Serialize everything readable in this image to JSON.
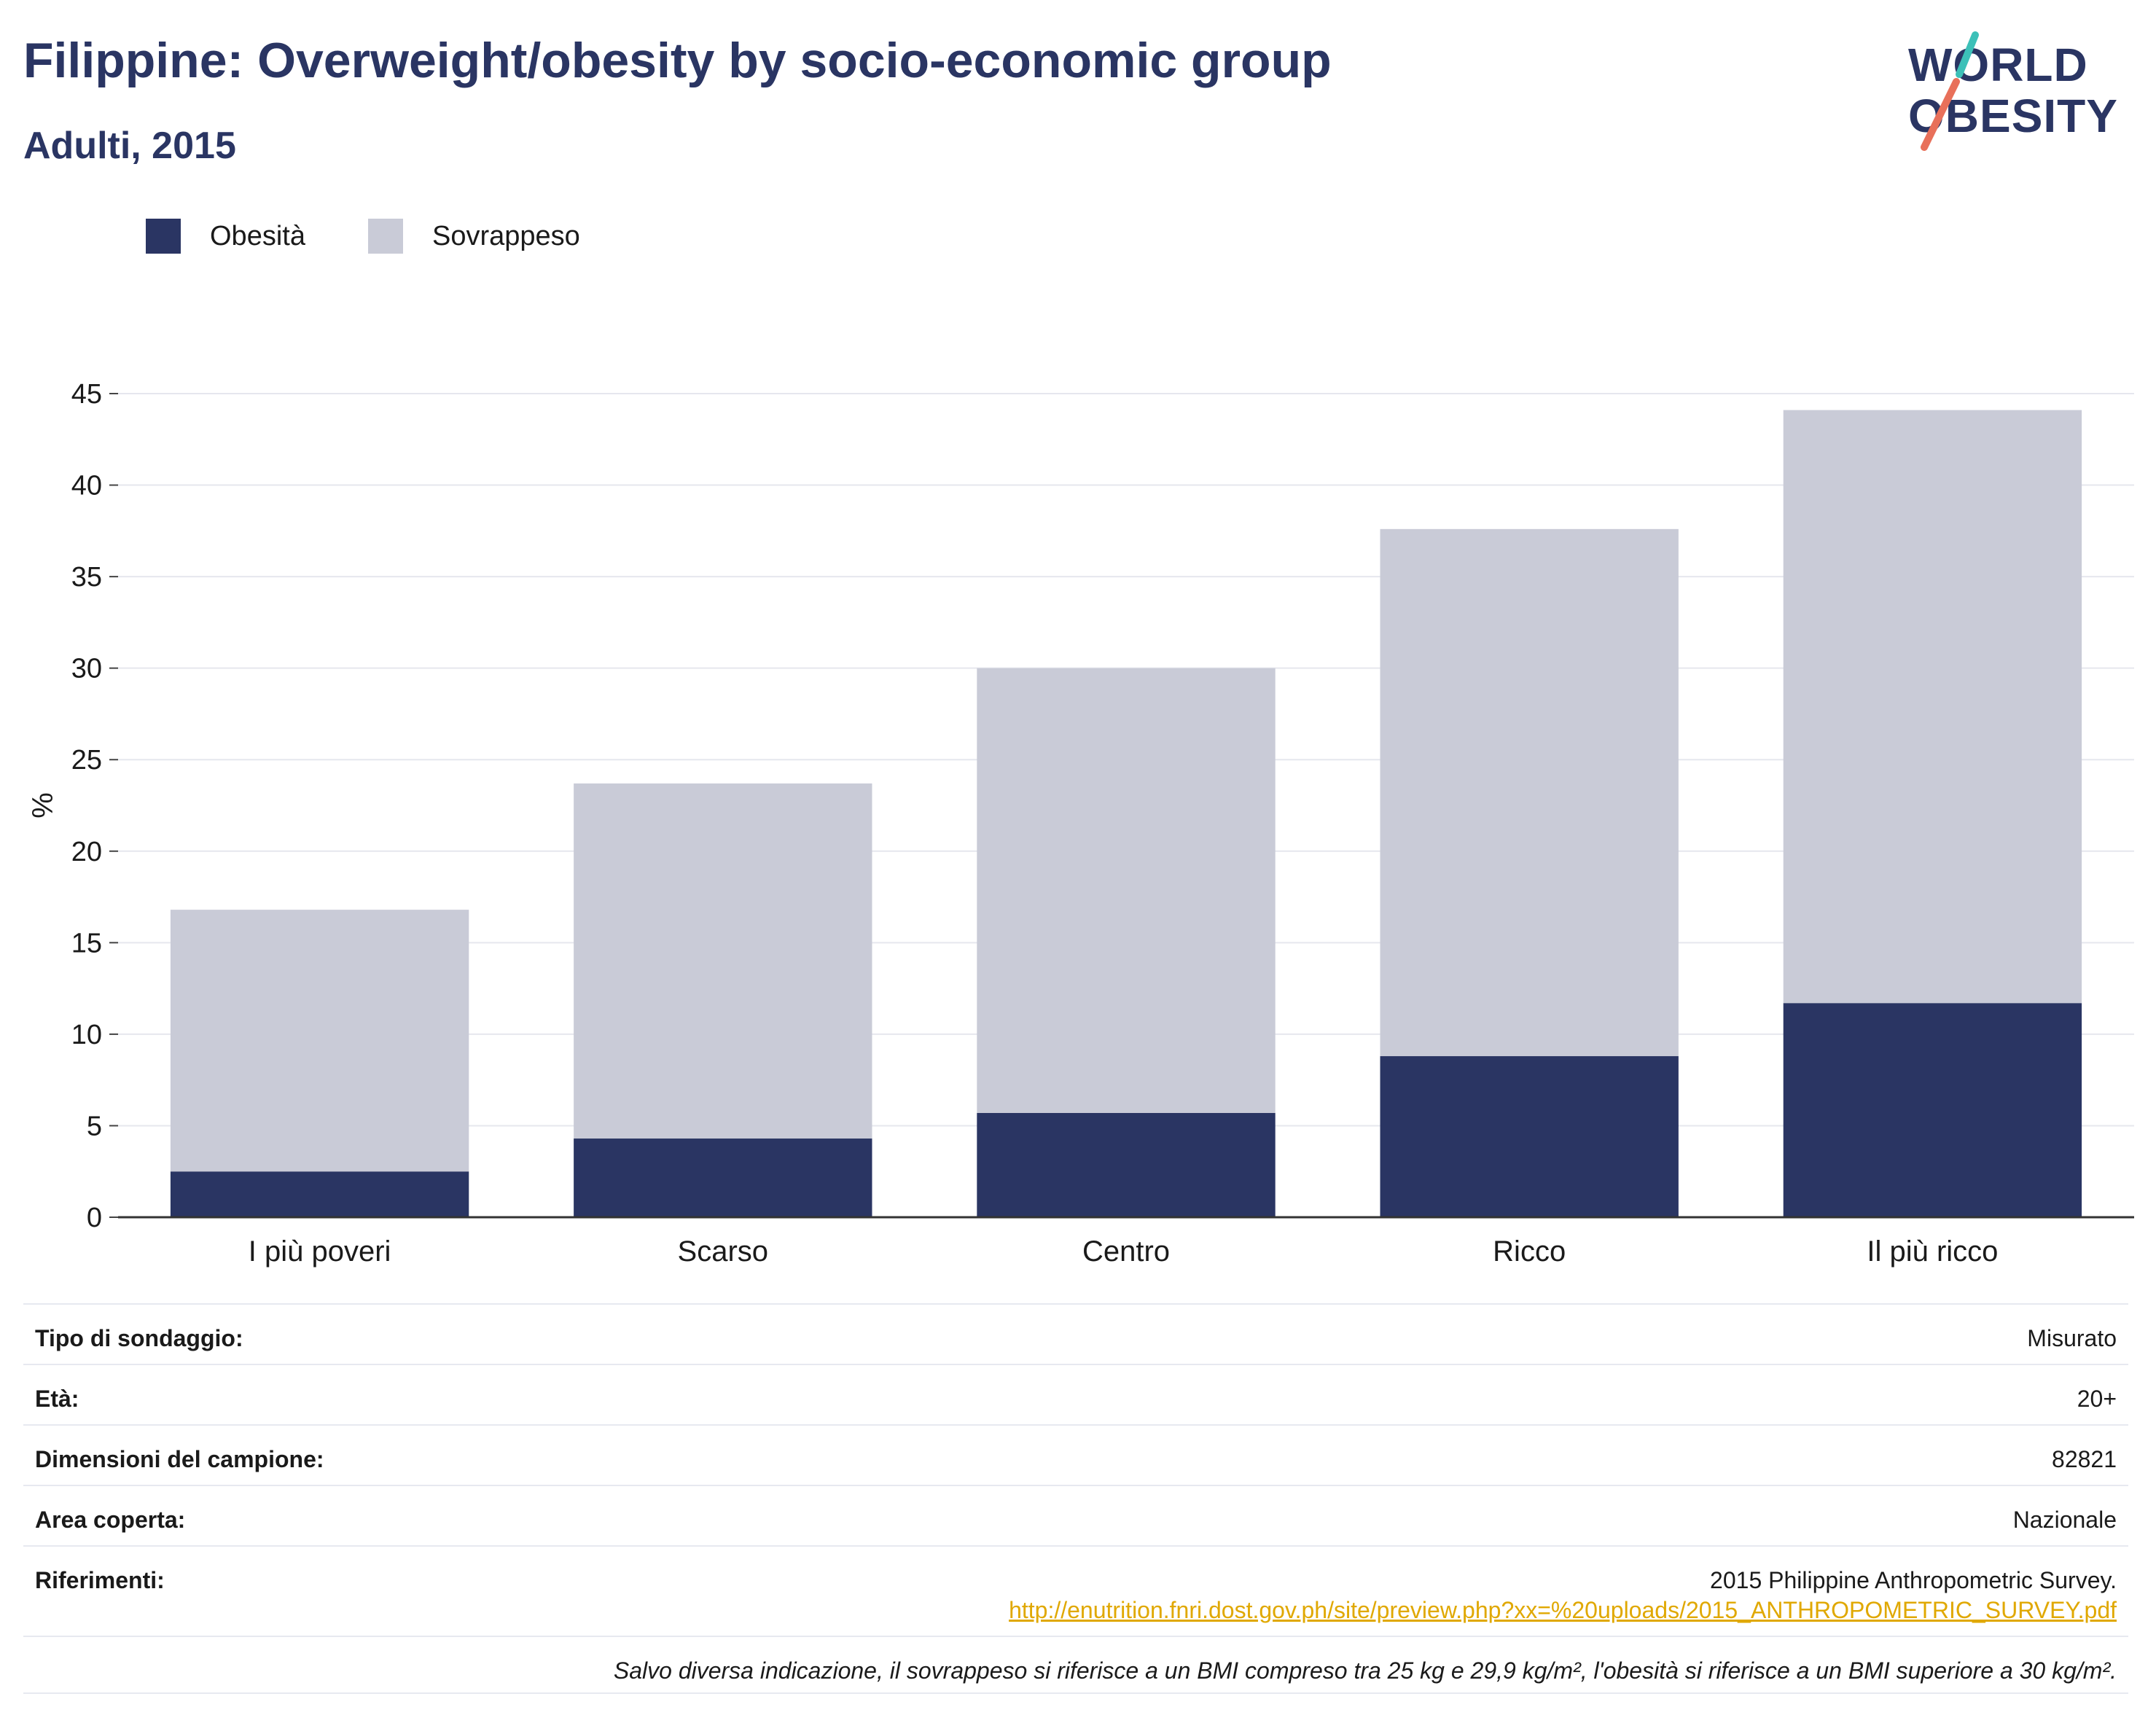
{
  "header": {
    "title": "Filippine: Overweight/obesity by socio-economic group",
    "subtitle": "Adulti, 2015"
  },
  "logo": {
    "line1": "WORLD",
    "line2": "OBESITY",
    "slash_top_color": "#3cc0b8",
    "slash_bottom_color": "#e8705a"
  },
  "colors": {
    "obesity": "#2a3563",
    "overweight": "#c9cbd7",
    "title": "#2a3563",
    "link": "#e0a800"
  },
  "chart_data": {
    "type": "bar",
    "stacked": true,
    "categories": [
      "I più poveri",
      "Scarso",
      "Centro",
      "Ricco",
      "Il più ricco"
    ],
    "series": [
      {
        "name": "Obesità",
        "color": "#2a3563",
        "values": [
          2.5,
          4.3,
          5.7,
          8.8,
          11.7
        ]
      },
      {
        "name": "Sovrappeso",
        "color": "#c9cbd7",
        "values": [
          14.3,
          19.4,
          24.3,
          28.8,
          32.4
        ]
      }
    ],
    "ylabel": "%",
    "ylim": [
      0,
      45
    ],
    "yticks": [
      0,
      5,
      10,
      15,
      20,
      25,
      30,
      35,
      40,
      45
    ],
    "grid": true,
    "legend_position": "top-left"
  },
  "meta": {
    "rows": [
      {
        "label": "Tipo di sondaggio:",
        "value": "Misurato"
      },
      {
        "label": "Età:",
        "value": "20+"
      },
      {
        "label": "Dimensioni del campione:",
        "value": "82821"
      },
      {
        "label": "Area coperta:",
        "value": "Nazionale"
      }
    ],
    "references": {
      "label": "Riferimenti:",
      "value": "2015 Philippine Anthropometric Survey.",
      "link": "http://enutrition.fnri.dost.gov.ph/site/preview.php?xx=%20uploads/2015_ANTHROPOMETRIC_SURVEY.pdf"
    },
    "note": "Salvo diversa indicazione, il sovrappeso si riferisce a un BMI compreso tra 25 kg e 29,9 kg/m², l'obesità si riferisce a un BMI superiore a 30 kg/m²."
  }
}
